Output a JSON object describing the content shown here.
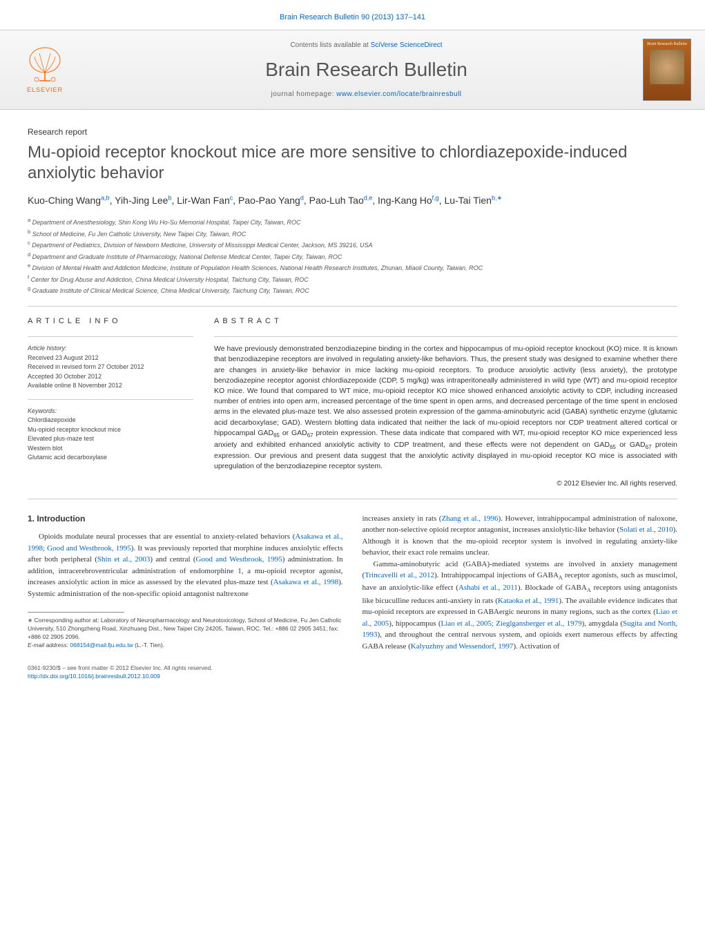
{
  "header": {
    "citation": "Brain Research Bulletin 90 (2013) 137–141",
    "contents_prefix": "Contents lists available at ",
    "contents_link": "SciVerse ScienceDirect",
    "journal_name": "Brain Research Bulletin",
    "homepage_prefix": "journal homepage: ",
    "homepage_url": "www.elsevier.com/locate/brainresbull",
    "publisher": "ELSEVIER",
    "cover_title": "Brain Research Bulletin"
  },
  "article": {
    "type": "Research report",
    "title": "Mu-opioid receptor knockout mice are more sensitive to chlordiazepoxide-induced anxiolytic behavior",
    "authors_html": "Kuo-Ching Wang<sup>a,b</sup>, Yih-Jing Lee<sup>b</sup>, Lir-Wan Fan<sup>c</sup>, Pao-Pao Yang<sup>d</sup>, Pao-Luh Tao<sup>d,e</sup>, Ing-Kang Ho<sup>f,g</sup>, Lu-Tai Tien<sup>b,∗</sup>"
  },
  "affiliations": [
    "a Department of Anesthesiology, Shin Kong Wu Ho-Su Memorial Hospital, Taipei City, Taiwan, ROC",
    "b School of Medicine, Fu Jen Catholic University, New Taipei City, Taiwan, ROC",
    "c Department of Pediatrics, Division of Newborn Medicine, University of Mississippi Medical Center, Jackson, MS 39216, USA",
    "d Department and Graduate Institute of Pharmacology, National Defense Medical Center, Taipei City, Taiwan, ROC",
    "e Division of Mental Health and Addiction Medicine, Institute of Population Health Sciences, National Health Research Institutes, Zhunan, Miaoli County, Taiwan, ROC",
    "f Center for Drug Abuse and Addiction, China Medical University Hospital, Taichung City, Taiwan, ROC",
    "g Graduate Institute of Clinical Medical Science, China Medical University, Taichung City, Taiwan, ROC"
  ],
  "article_info": {
    "heading": "ARTICLE INFO",
    "history_title": "Article history:",
    "history": [
      "Received 23 August 2012",
      "Received in revised form 27 October 2012",
      "Accepted 30 October 2012",
      "Available online 8 November 2012"
    ],
    "keywords_title": "Keywords:",
    "keywords": [
      "Chlordiazepoxide",
      "Mu-opioid receptor knockout mice",
      "Elevated plus-maze test",
      "Western blot",
      "Glutamic acid decarboxylase"
    ]
  },
  "abstract": {
    "heading": "ABSTRACT",
    "text": "We have previously demonstrated benzodiazepine binding in the cortex and hippocampus of mu-opioid receptor knockout (KO) mice. It is known that benzodiazepine receptors are involved in regulating anxiety-like behaviors. Thus, the present study was designed to examine whether there are changes in anxiety-like behavior in mice lacking mu-opioid receptors. To produce anxiolytic activity (less anxiety), the prototype benzodiazepine receptor agonist chlordiazepoxide (CDP, 5 mg/kg) was intraperitoneally administered in wild type (WT) and mu-opioid receptor KO mice. We found that compared to WT mice, mu-opioid receptor KO mice showed enhanced anxiolytic activity to CDP, including increased number of entries into open arm, increased percentage of the time spent in open arms, and decreased percentage of the time spent in enclosed arms in the elevated plus-maze test. We also assessed protein expression of the gamma-aminobutyric acid (GABA) synthetic enzyme (glutamic acid decarboxylase; GAD). Western blotting data indicated that neither the lack of mu-opioid receptors nor CDP treatment altered cortical or hippocampal GAD65 or GAD67 protein expression. These data indicate that compared with WT, mu-opioid receptor KO mice experienced less anxiety and exhibited enhanced anxiolytic activity to CDP treatment, and these effects were not dependent on GAD65 or GAD67 protein expression. Our previous and present data suggest that the anxiolytic activity displayed in mu-opioid receptor KO mice is associated with upregulation of the benzodiazepine receptor system.",
    "copyright": "© 2012 Elsevier Inc. All rights reserved."
  },
  "body": {
    "intro_heading": "1. Introduction",
    "col1_p1": "Opioids modulate neural processes that are essential to anxiety-related behaviors (Asakawa et al., 1998; Good and Westbrook, 1995). It was previously reported that morphine induces anxiolytic effects after both peripheral (Shin et al., 2003) and central (Good and Westbrook, 1995) administration. In addition, intracerebroventricular administration of endomorphine 1, a mu-opioid receptor agonist, increases anxiolytic action in mice as assessed by the elevated plus-maze test (Asakawa et al., 1998). Systemic administration of the non-specific opioid antagonist naltrexone",
    "col2_p1": "increases anxiety in rats (Zhang et al., 1996). However, intrahippocampal administration of naloxone, another non-selective opioid receptor antagonist, increases anxiolytic-like behavior (Solati et al., 2010). Although it is known that the mu-opioid receptor system is involved in regulating anxiety-like behavior, their exact role remains unclear.",
    "col2_p2": "Gamma-aminobutyric acid (GABA)-mediated systems are involved in anxiety management (Trincavelli et al., 2012). Intrahippocampal injections of GABAA receptor agonists, such as muscimol, have an anxiolytic-like effect (Ashabi et al., 2011). Blockade of GABAA receptors using antagonists like bicuculline reduces anti-anxiety in rats (Kataoka et al., 1991). The available evidence indicates that mu-opioid receptors are expressed in GABAergic neurons in many regions, such as the cortex (Liao et al., 2005), hippocampus (Liao et al., 2005; Zieglgansberger et al., 1979), amygdala (Sugita and North, 1993), and throughout the central nervous system, and opioids exert numerous effects by affecting GABA release (Kalyuzhny and Wessendorf, 1997). Activation of"
  },
  "footnote": {
    "corresponding": "∗ Corresponding author at: Laboratory of Neuropharmacology and Neurotoxicology, School of Medicine, Fu Jen Catholic University, 510 Zhongzheng Road, Xinzhuang Dist., New Taipei City 24205, Taiwan, ROC. Tel.: +886 02 2905 3451; fax: +886 02 2905 2096.",
    "email_label": "E-mail address: ",
    "email": "068154@mail.fju.edu.tw",
    "email_suffix": " (L.-T. Tien)."
  },
  "footer": {
    "issn": "0361-9230/$ – see front matter © 2012 Elsevier Inc. All rights reserved.",
    "doi": "http://dx.doi.org/10.1016/j.brainresbull.2012.10.009"
  },
  "colors": {
    "link": "#0066cc",
    "text": "#333333",
    "heading_gray": "#505050",
    "banner_bg_top": "#f8f8f8",
    "banner_bg_bottom": "#ececec",
    "cover_top": "#b8651f",
    "cover_bottom": "#8b4513",
    "elsevier_orange": "#ff6600"
  }
}
